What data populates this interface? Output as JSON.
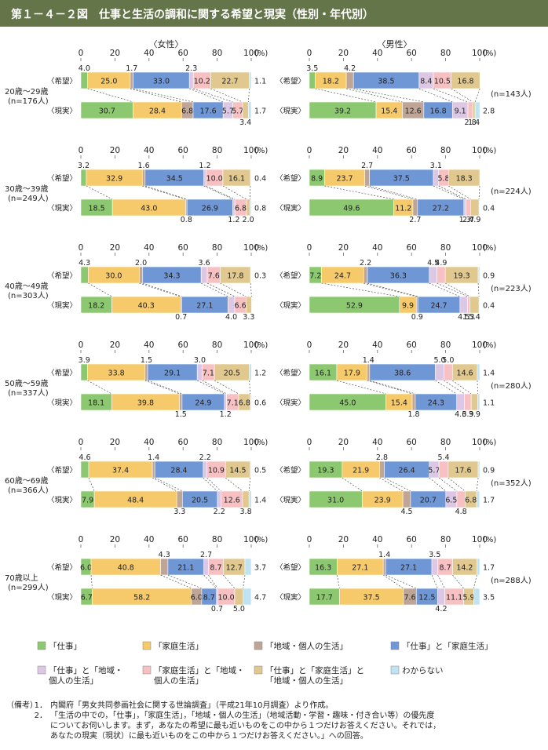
{
  "figure": {
    "title": "第１－４－２図　仕事と生活の調和に関する希望と現実（性別・年代別）"
  },
  "chart_data": {
    "type": "bar",
    "orientation": "horizontal-stacked-100",
    "axis": {
      "ticks": [
        "0",
        "20",
        "40",
        "60",
        "80",
        "100"
      ],
      "unit": "(%)",
      "range": [
        0,
        100
      ]
    },
    "panels": [
      {
        "name": "〈女性〉",
        "key": "female"
      },
      {
        "name": "〈男性〉",
        "key": "male"
      }
    ],
    "row_labels": {
      "hope": "〈希望〉",
      "reality": "〈現実〉"
    },
    "categories": [
      {
        "name": "「仕事」",
        "color": "#8cc86f"
      },
      {
        "name": "「家庭生活」",
        "color": "#f6c96a"
      },
      {
        "name": "「地域・個人の生活」",
        "color": "#bea596"
      },
      {
        "name": "「仕事」と「家庭生活」",
        "color": "#6f97d6"
      },
      {
        "name": "「仕事」と「地域・個人の生活」",
        "color": "#dcc8e4"
      },
      {
        "name": "「家庭生活」と「地域・個人の生活」",
        "color": "#f7c0c2"
      },
      {
        "name": "「仕事」と「家庭生活」と「地域・個人の生活」",
        "color": "#e0c88e"
      },
      {
        "name": "わからない",
        "color": "#bfe3f2"
      }
    ],
    "groups": [
      {
        "age": "20歳～29歳",
        "female": {
          "n": "(n=176人)",
          "hope": [
            4.0,
            25.0,
            1.7,
            33.0,
            2.3,
            10.2,
            22.7,
            1.1
          ],
          "hope_labels": [
            "4.0",
            "25.0",
            "1.7",
            "33.0",
            "2.3",
            "10.2",
            "22.7",
            "1.1"
          ],
          "reality": [
            30.7,
            28.4,
            6.8,
            17.6,
            5.7,
            5.7,
            3.4,
            1.7
          ],
          "reality_labels": [
            "30.7",
            "28.4",
            "6.8",
            "17.6",
            "5.7",
            "5.7",
            "3.4",
            "1.7"
          ]
        },
        "male": {
          "n": "(n=143人)",
          "hope": [
            3.5,
            18.2,
            4.2,
            38.5,
            8.4,
            10.5,
            16.8,
            0
          ],
          "hope_labels": [
            "3.5",
            "18.2",
            "4.2",
            "38.5",
            "8.4",
            "10.5",
            "16.8",
            ""
          ],
          "reality": [
            39.2,
            15.4,
            12.6,
            16.8,
            9.1,
            2.8,
            1.4,
            2.8
          ],
          "reality_labels": [
            "39.2",
            "15.4",
            "12.6",
            "16.8",
            "9.1",
            "2.8",
            "1.4",
            "2.8"
          ]
        }
      },
      {
        "age": "30歳～39歳",
        "female": {
          "n": "(n=249人)",
          "hope": [
            3.2,
            32.9,
            1.6,
            34.5,
            1.2,
            10.0,
            16.1,
            0.4
          ],
          "hope_labels": [
            "3.2",
            "32.9",
            "1.6",
            "34.5",
            "1.2",
            "10.0",
            "16.1",
            "0.4"
          ],
          "reality": [
            18.5,
            43.0,
            0.8,
            26.9,
            1.2,
            6.8,
            2.0,
            0.8
          ],
          "reality_labels": [
            "18.5",
            "43.0",
            "0.8",
            "26.9",
            "1.2",
            "6.8",
            "2.0",
            "0.8"
          ]
        },
        "male": {
          "n": "(n=224人)",
          "hope": [
            8.9,
            23.7,
            2.7,
            37.5,
            3.1,
            5.8,
            18.3,
            0
          ],
          "hope_labels": [
            "8.9",
            "23.7",
            "2.7",
            "37.5",
            "3.1",
            "5.8",
            "18.3",
            ""
          ],
          "reality": [
            49.6,
            11.2,
            2.7,
            27.2,
            1.3,
            2.7,
            4.9,
            0.4
          ],
          "reality_labels": [
            "49.6",
            "11.2",
            "2.7",
            "27.2",
            "1.3",
            "2.7",
            "4.9",
            "0.4"
          ]
        }
      },
      {
        "age": "40歳～49歳",
        "female": {
          "n": "(n=303人)",
          "hope": [
            4.3,
            30.0,
            2.0,
            34.3,
            3.6,
            7.6,
            17.8,
            0.3
          ],
          "hope_labels": [
            "4.3",
            "30.0",
            "2.0",
            "34.3",
            "3.6",
            "7.6",
            "17.8",
            "0.3"
          ],
          "reality": [
            18.2,
            40.3,
            0.7,
            27.1,
            4.0,
            6.6,
            3.3,
            0
          ],
          "reality_labels": [
            "18.2",
            "40.3",
            "0.7",
            "27.1",
            "4.0",
            "6.6",
            "3.3",
            ""
          ]
        },
        "male": {
          "n": "(n=223人)",
          "hope": [
            7.2,
            24.7,
            2.2,
            36.3,
            4.5,
            4.9,
            19.3,
            0.9
          ],
          "hope_labels": [
            "7.2",
            "24.7",
            "2.2",
            "36.3",
            "4.5",
            "4.9",
            "19.3",
            "0.9"
          ],
          "reality": [
            52.9,
            9.9,
            0.9,
            24.7,
            4.5,
            1.3,
            5.4,
            0.4
          ],
          "reality_labels": [
            "52.9",
            "9.9",
            "0.9",
            "24.7",
            "4.5",
            "1.3",
            "5.4",
            "0.4"
          ]
        }
      },
      {
        "age": "50歳～59歳",
        "female": {
          "n": "(n=337人)",
          "hope": [
            3.9,
            33.8,
            1.5,
            29.1,
            3.0,
            7.1,
            20.5,
            1.2
          ],
          "hope_labels": [
            "3.9",
            "33.8",
            "1.5",
            "29.1",
            "3.0",
            "7.1",
            "20.5",
            "1.2"
          ],
          "reality": [
            18.1,
            39.8,
            1.5,
            24.9,
            1.2,
            7.1,
            6.8,
            0.6
          ],
          "reality_labels": [
            "18.1",
            "39.8",
            "1.5",
            "24.9",
            "1.2",
            "7.1",
            "6.8",
            "0.6"
          ]
        },
        "male": {
          "n": "(n=280人)",
          "hope": [
            16.1,
            17.9,
            1.4,
            38.6,
            5.0,
            5.0,
            14.6,
            1.4
          ],
          "hope_labels": [
            "16.1",
            "17.9",
            "1.4",
            "38.6",
            "5.0",
            "5.0",
            "14.6",
            "1.4"
          ],
          "reality": [
            45.0,
            15.4,
            1.8,
            24.3,
            4.6,
            3.9,
            3.9,
            1.1
          ],
          "reality_labels": [
            "45.0",
            "15.4",
            "1.8",
            "24.3",
            "4.6",
            "3.9",
            "3.9",
            "1.1"
          ]
        }
      },
      {
        "age": "60歳～69歳",
        "female": {
          "n": "(n=366人)",
          "hope": [
            4.6,
            37.4,
            1.4,
            28.4,
            2.2,
            10.9,
            14.5,
            0.5
          ],
          "hope_labels": [
            "4.6",
            "37.4",
            "1.4",
            "28.4",
            "2.2",
            "10.9",
            "14.5",
            "0.5"
          ],
          "reality": [
            7.9,
            48.4,
            3.3,
            20.5,
            2.2,
            12.6,
            3.8,
            1.4
          ],
          "reality_labels": [
            "7.9",
            "48.4",
            "3.3",
            "20.5",
            "2.2",
            "12.6",
            "3.8",
            "1.4"
          ]
        },
        "male": {
          "n": "(n=352人)",
          "hope": [
            19.3,
            21.9,
            2.8,
            26.4,
            5.7,
            5.4,
            17.6,
            0.9
          ],
          "hope_labels": [
            "19.3",
            "21.9",
            "2.8",
            "26.4",
            "5.7",
            "5.4",
            "17.6",
            "0.9"
          ],
          "reality": [
            31.0,
            23.9,
            4.5,
            20.7,
            6.5,
            4.8,
            6.8,
            1.7
          ],
          "reality_labels": [
            "31.0",
            "23.9",
            "4.5",
            "20.7",
            "6.5",
            "4.8",
            "6.8",
            "1.7"
          ]
        }
      },
      {
        "age": "70歳以上",
        "female": {
          "n": "(n=299人)",
          "hope": [
            6.0,
            40.8,
            4.3,
            21.1,
            2.7,
            8.7,
            12.7,
            3.7
          ],
          "hope_labels": [
            "6.0",
            "40.8",
            "4.3",
            "21.1",
            "2.7",
            "8.7",
            "12.7",
            "3.7"
          ],
          "reality": [
            6.7,
            58.2,
            6.0,
            8.7,
            0.7,
            10.0,
            5.0,
            4.7
          ],
          "reality_labels": [
            "6.7",
            "58.2",
            "6.0",
            "8.7",
            "0.7",
            "10.0",
            "5.0",
            "4.7"
          ]
        },
        "male": {
          "n": "(n=288人)",
          "hope": [
            16.3,
            27.1,
            1.4,
            27.1,
            3.5,
            8.7,
            14.2,
            1.7
          ],
          "hope_labels": [
            "16.3",
            "27.1",
            "1.4",
            "27.1",
            "3.5",
            "8.7",
            "14.2",
            "1.7"
          ],
          "reality": [
            17.7,
            37.5,
            7.6,
            12.5,
            4.2,
            11.1,
            5.9,
            3.5
          ],
          "reality_labels": [
            "17.7",
            "37.5",
            "7.6",
            "12.5",
            "4.2",
            "11.1",
            "5.9",
            "3.5"
          ]
        }
      }
    ],
    "legend": [
      "「仕事」",
      "「家庭生活」",
      "「地域・個人の生活」",
      "「仕事」と「家庭生活」",
      "「仕事」と「地域・個人の生活」",
      "「家庭生活」と「地域・個人の生活」",
      "「仕事」と「家庭生活」と「地域・個人の生活」",
      "わからない"
    ],
    "legend_lines": [
      [
        "「仕事」"
      ],
      [
        "「家庭生活」"
      ],
      [
        "「地域・個人の生活」"
      ],
      [
        "「仕事」と「家庭生活」"
      ],
      [
        "「仕事」と「地域・",
        "個人の生活」"
      ],
      [
        "「家庭生活」と「地域・",
        "個人の生活」"
      ],
      [
        "「仕事」と「家庭生活」と",
        "「地域・個人の生活」"
      ],
      [
        "わからない"
      ]
    ]
  },
  "notes": {
    "label": "（備考）",
    "items": [
      {
        "num": "1．",
        "lines": [
          "内閣府「男女共同参画社会に関する世論調査」（平成21年10月調査）より作成。"
        ]
      },
      {
        "num": "2．",
        "lines": [
          "「生活の中での，「仕事」，「家庭生活」，「地域・個人の生活」（地域活動・学習・趣味・付き合い等）の優先度",
          "についてお伺いします。まず，あなたの希望に最も近いものをこの中から１つだけお答えください。それでは，",
          "あなたの現実（現状）に最も近いものをこの中から１つだけお答えください。」への回答。"
        ]
      }
    ]
  }
}
